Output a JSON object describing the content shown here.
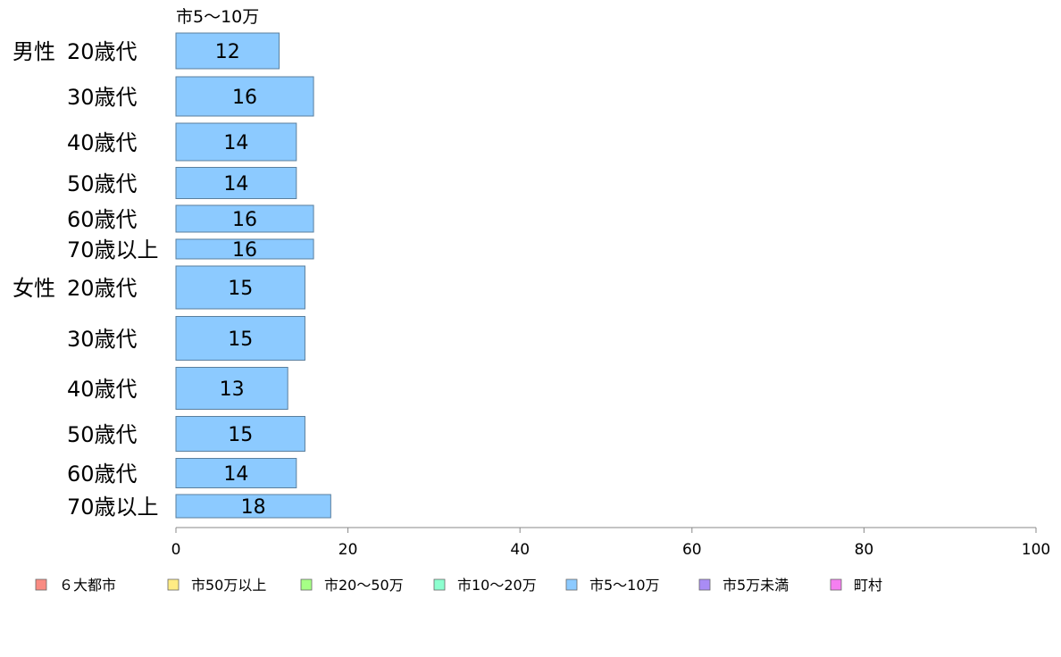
{
  "chart_data": {
    "type": "bar",
    "orientation": "horizontal",
    "title": "市5〜10万",
    "groups": [
      {
        "name": "男性",
        "categories": [
          "20歳代",
          "30歳代",
          "40歳代",
          "50歳代",
          "60歳代",
          "70歳以上"
        ]
      },
      {
        "name": "女性",
        "categories": [
          "20歳代",
          "30歳代",
          "40歳代",
          "50歳代",
          "60歳代",
          "70歳以上"
        ]
      }
    ],
    "series": [
      {
        "name": "市5〜10万",
        "color": "#8ccaff",
        "values": [
          12,
          16,
          14,
          14,
          16,
          16,
          15,
          15,
          13,
          15,
          14,
          18
        ]
      }
    ],
    "xlim": [
      0,
      100
    ],
    "xticks": [
      0,
      20,
      40,
      60,
      80,
      100
    ],
    "grid": false,
    "legend": {
      "position": "bottom",
      "entries": [
        {
          "name": "６大都市",
          "color": "#f98b82"
        },
        {
          "name": "市50万以上",
          "color": "#ffeb84"
        },
        {
          "name": "市20〜50万",
          "color": "#a6ff86"
        },
        {
          "name": "市10〜20万",
          "color": "#8cffcf"
        },
        {
          "name": "市5〜10万",
          "color": "#8ccaff"
        },
        {
          "name": "市5万未満",
          "color": "#a98cf5"
        },
        {
          "name": "町村",
          "color": "#f57ff0"
        }
      ]
    }
  }
}
